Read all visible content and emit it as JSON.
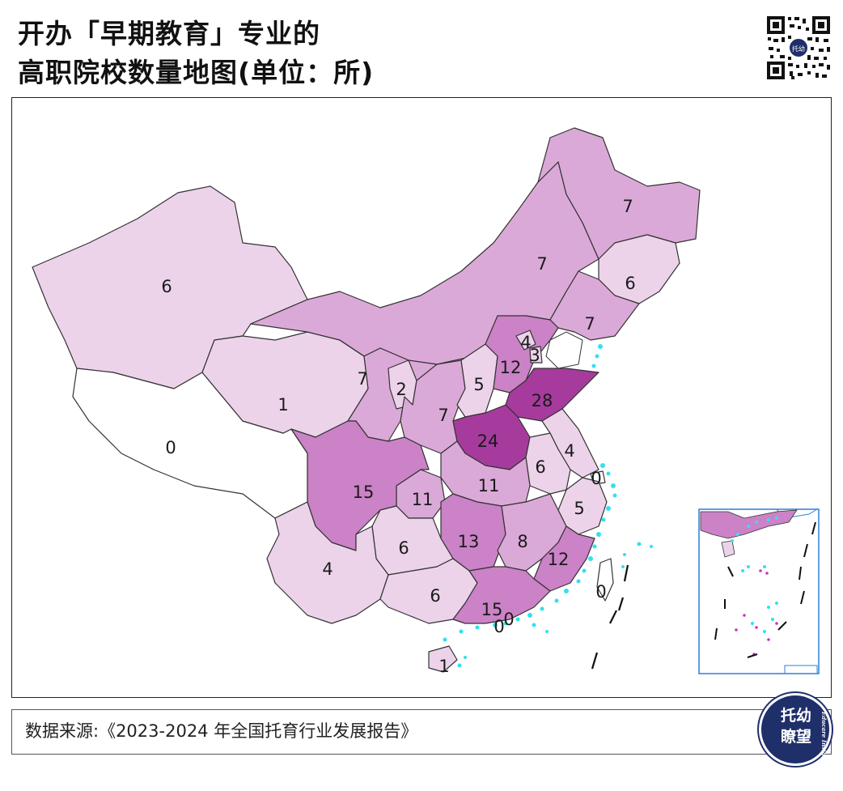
{
  "title": {
    "line1": "开办「早期教育」专业的",
    "line2": "高职院校数量地图(单位：所)"
  },
  "map_values": {
    "heilongjiang": "7",
    "jilin": "6",
    "liaoning": "7",
    "inner_mongolia": "7",
    "xinjiang": "6",
    "tibet": "0",
    "qinghai": "1",
    "gansu": "7",
    "ningxia": "2",
    "shaanxi": "7",
    "shanxi": "5",
    "hebei": "12",
    "beijing": "4",
    "tianjin": "3",
    "shandong": "28",
    "henan": "24",
    "jiangsu": "4",
    "anhui": "6",
    "shanghai": "0",
    "hubei": "11",
    "chongqing": "11",
    "sichuan": "15",
    "zhejiang": "5",
    "hunan": "13",
    "jiangxi": "8",
    "fujian": "12",
    "guizhou": "6",
    "yunnan": "4",
    "guangxi": "6",
    "guangdong": "15",
    "hongkong": "0",
    "macau": "0",
    "taiwan": "0",
    "hainan": "1"
  },
  "colors": {
    "v0": "#ffffff",
    "v1_6": "#ecd3ea",
    "v7_11": "#dba9d8",
    "v12_15": "#cb82c6",
    "v24_28": "#a63b9d",
    "sea_dots": "#33e0f0",
    "border": "#222222"
  },
  "source": "数据来源:《2023-2024 年全国托育行业发展报告》",
  "badge": {
    "line1": "托幼",
    "line2": "瞭望",
    "side": "Educare Insight"
  },
  "icons": {
    "qr": "qr-code-icon",
    "badge": "brand-logo-icon"
  }
}
